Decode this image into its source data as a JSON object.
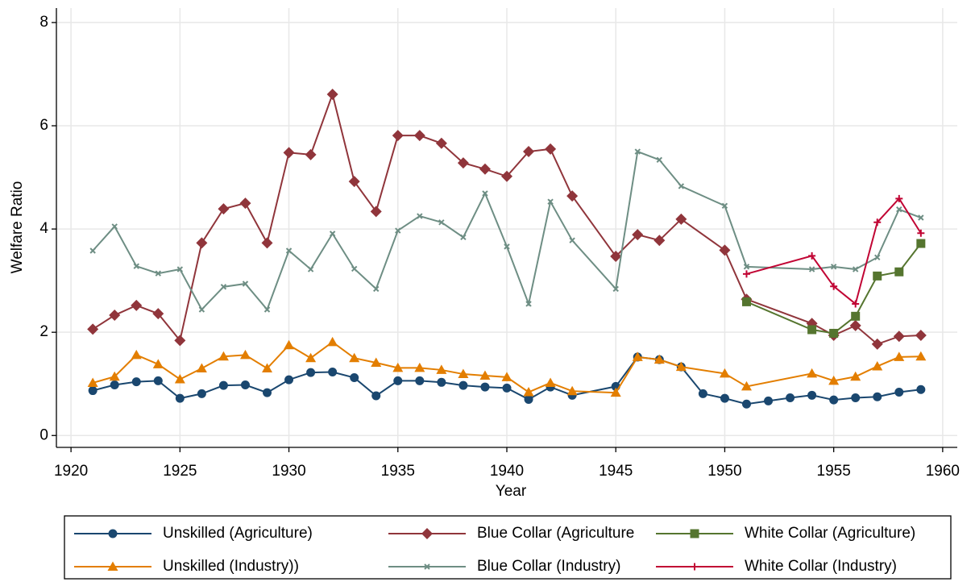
{
  "chart_data": {
    "type": "line",
    "xlabel": "Year",
    "ylabel": "Welfare Ratio",
    "xlim": [
      1919.33,
      1960.67
    ],
    "ylim": [
      -0.23,
      8.28
    ],
    "xticks": [
      1920,
      1925,
      1930,
      1935,
      1940,
      1945,
      1950,
      1955,
      1960
    ],
    "yticks": [
      0,
      2,
      4,
      6,
      8
    ],
    "grid": true,
    "legend": "bottom",
    "series": [
      {
        "name": "Unskilled (Agriculture)",
        "color": "#1a476f",
        "marker": "circle",
        "x": [
          1921,
          1922,
          1923,
          1924,
          1925,
          1926,
          1927,
          1928,
          1929,
          1930,
          1931,
          1932,
          1933,
          1934,
          1935,
          1936,
          1937,
          1938,
          1939,
          1940,
          1941,
          1942,
          1943,
          1945,
          1946,
          1947,
          1948,
          1949,
          1950,
          1951,
          1952,
          1953,
          1954,
          1955,
          1956,
          1957,
          1958,
          1959
        ],
        "values": [
          0.87,
          0.98,
          1.04,
          1.06,
          0.72,
          0.81,
          0.97,
          0.98,
          0.83,
          1.08,
          1.22,
          1.23,
          1.12,
          0.77,
          1.06,
          1.06,
          1.03,
          0.97,
          0.94,
          0.92,
          0.7,
          0.94,
          0.78,
          0.95,
          1.52,
          1.47,
          1.33,
          0.81,
          0.72,
          0.61,
          0.67,
          0.73,
          0.78,
          0.69,
          0.73,
          0.75,
          0.84,
          0.89
        ]
      },
      {
        "name": "Blue Collar (Agriculture",
        "color": "#90353b",
        "marker": "diamond",
        "x": [
          1921,
          1922,
          1923,
          1924,
          1925,
          1926,
          1927,
          1928,
          1929,
          1930,
          1931,
          1932,
          1933,
          1934,
          1935,
          1936,
          1937,
          1938,
          1939,
          1940,
          1941,
          1942,
          1943,
          1945,
          1946,
          1947,
          1948,
          1950,
          1951,
          1954,
          1955,
          1956,
          1957,
          1958,
          1959
        ],
        "values": [
          2.06,
          2.33,
          2.52,
          2.36,
          1.84,
          3.73,
          4.39,
          4.5,
          3.73,
          5.48,
          5.44,
          6.61,
          4.92,
          4.34,
          5.81,
          5.81,
          5.66,
          5.28,
          5.16,
          5.02,
          5.5,
          5.55,
          4.64,
          3.47,
          3.89,
          3.78,
          4.19,
          3.59,
          2.64,
          2.17,
          1.94,
          2.13,
          1.77,
          1.92,
          1.94
        ]
      },
      {
        "name": "White Collar (Agriculture)",
        "color": "#55752f",
        "marker": "square",
        "x": [
          1951,
          1954,
          1955,
          1956,
          1957,
          1958,
          1959
        ],
        "values": [
          2.59,
          2.05,
          1.98,
          2.31,
          3.09,
          3.17,
          3.72
        ]
      },
      {
        "name": "Unskilled (Industry))",
        "color": "#e37e00",
        "marker": "triangle",
        "x": [
          1921,
          1922,
          1923,
          1924,
          1925,
          1926,
          1927,
          1928,
          1929,
          1930,
          1931,
          1932,
          1933,
          1934,
          1935,
          1936,
          1937,
          1938,
          1939,
          1940,
          1941,
          1942,
          1943,
          1945,
          1946,
          1947,
          1948,
          1950,
          1951,
          1954,
          1955,
          1956,
          1957,
          1958,
          1959
        ],
        "values": [
          1.02,
          1.14,
          1.56,
          1.38,
          1.09,
          1.3,
          1.53,
          1.56,
          1.3,
          1.75,
          1.5,
          1.81,
          1.5,
          1.41,
          1.31,
          1.31,
          1.27,
          1.19,
          1.16,
          1.13,
          0.84,
          1.02,
          0.86,
          0.83,
          1.52,
          1.47,
          1.33,
          1.2,
          0.95,
          1.2,
          1.06,
          1.14,
          1.34,
          1.52,
          1.53
        ]
      },
      {
        "name": "Blue Collar (Industry)",
        "color": "#6e8e84",
        "marker": "x",
        "x": [
          1921,
          1922,
          1923,
          1924,
          1925,
          1926,
          1927,
          1928,
          1929,
          1930,
          1931,
          1932,
          1933,
          1934,
          1935,
          1936,
          1937,
          1938,
          1939,
          1940,
          1941,
          1942,
          1943,
          1945,
          1946,
          1947,
          1948,
          1950,
          1951,
          1954,
          1955,
          1956,
          1957,
          1958,
          1959
        ],
        "values": [
          3.58,
          4.05,
          3.28,
          3.14,
          3.22,
          2.44,
          2.88,
          2.94,
          2.44,
          3.58,
          3.22,
          3.91,
          3.23,
          2.84,
          3.97,
          4.25,
          4.13,
          3.84,
          4.69,
          3.66,
          2.55,
          4.53,
          3.78,
          2.84,
          5.5,
          5.34,
          4.83,
          4.45,
          3.27,
          3.22,
          3.27,
          3.22,
          3.45,
          4.38,
          4.22
        ]
      },
      {
        "name": "White Collar (Industry)",
        "color": "#c10534",
        "marker": "plus",
        "x": [
          1951,
          1954,
          1955,
          1956,
          1957,
          1958,
          1959
        ],
        "values": [
          3.13,
          3.48,
          2.89,
          2.55,
          4.13,
          4.59,
          3.92
        ]
      }
    ]
  }
}
